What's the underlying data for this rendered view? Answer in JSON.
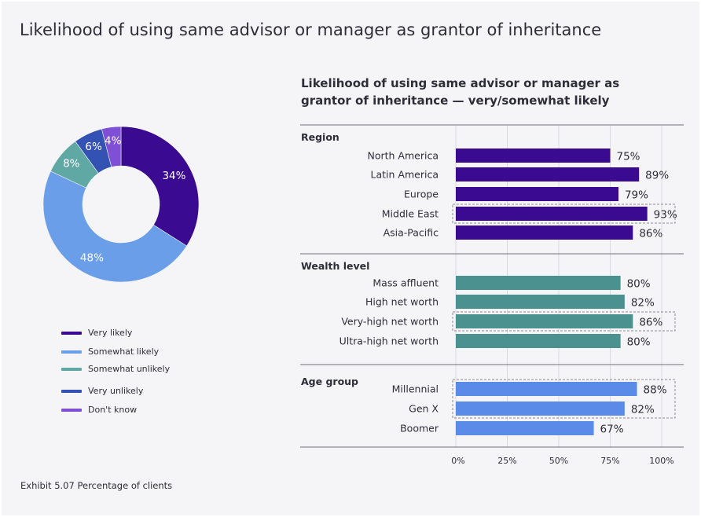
{
  "page": {
    "title": "Likelihood of using same advisor or manager as grantor of inheritance",
    "footnote": "Exhibit 5.07 Percentage of clients"
  },
  "chart_data": [
    {
      "type": "pie",
      "variant": "donut",
      "slices": [
        {
          "label": "Very likely",
          "value": 34,
          "display": "34%",
          "color": "#3a0a91"
        },
        {
          "label": "Somewhat likely",
          "value": 48,
          "display": "48%",
          "color": "#6a9ee8"
        },
        {
          "label": "Somewhat unlikely",
          "value": 8,
          "display": "8%",
          "color": "#5fa8a4"
        },
        {
          "label": "Very unlikely",
          "value": 6,
          "display": "6%",
          "color": "#3452b3"
        },
        {
          "label": "Don't know",
          "value": 4,
          "display": "4%",
          "color": "#7f4fd6"
        }
      ],
      "legend": [
        {
          "label": "Very likely",
          "color": "#3a0a91"
        },
        {
          "label": "Somewhat likely",
          "color": "#6a9ee8"
        },
        {
          "label": "Somewhat unlikely",
          "color": "#5fa8a4"
        },
        {
          "label": "Very unlikely",
          "color": "#3452b3"
        },
        {
          "label": "Don't know",
          "color": "#7f4fd6"
        }
      ],
      "legend_position": "bottom"
    },
    {
      "type": "bar",
      "orientation": "horizontal",
      "title": "Likelihood of using same advisor or manager as grantor of inheritance — very/somewhat likely",
      "xlim": [
        0,
        100
      ],
      "xticks": [
        "0%",
        "25%",
        "50%",
        "75%",
        "100%"
      ],
      "groups": [
        {
          "name": "Region",
          "color": "#3a0a91",
          "bars": [
            {
              "label": "North America",
              "value": 75,
              "display": "75%",
              "highlight": false
            },
            {
              "label": "Latin America",
              "value": 89,
              "display": "89%",
              "highlight": false
            },
            {
              "label": "Europe",
              "value": 79,
              "display": "79%",
              "highlight": false
            },
            {
              "label": "Middle East",
              "value": 93,
              "display": "93%",
              "highlight": true
            },
            {
              "label": "Asia-Pacific",
              "value": 86,
              "display": "86%",
              "highlight": false
            }
          ]
        },
        {
          "name": "Wealth level",
          "color": "#4a9190",
          "bars": [
            {
              "label": "Mass affluent",
              "value": 80,
              "display": "80%",
              "highlight": false
            },
            {
              "label": "High net worth",
              "value": 82,
              "display": "82%",
              "highlight": false
            },
            {
              "label": "Very-high net worth",
              "value": 86,
              "display": "86%",
              "highlight": true
            },
            {
              "label": "Ultra-high net worth",
              "value": 80,
              "display": "80%",
              "highlight": false
            }
          ]
        },
        {
          "name": "Age group",
          "color": "#5b8be8",
          "bars": [
            {
              "label": "Millennial",
              "value": 88,
              "display": "88%",
              "highlight": true
            },
            {
              "label": "Gen X",
              "value": 82,
              "display": "82%",
              "highlight": true
            },
            {
              "label": "Boomer",
              "value": 67,
              "display": "67%",
              "highlight": false
            }
          ]
        }
      ],
      "grid": true
    }
  ]
}
